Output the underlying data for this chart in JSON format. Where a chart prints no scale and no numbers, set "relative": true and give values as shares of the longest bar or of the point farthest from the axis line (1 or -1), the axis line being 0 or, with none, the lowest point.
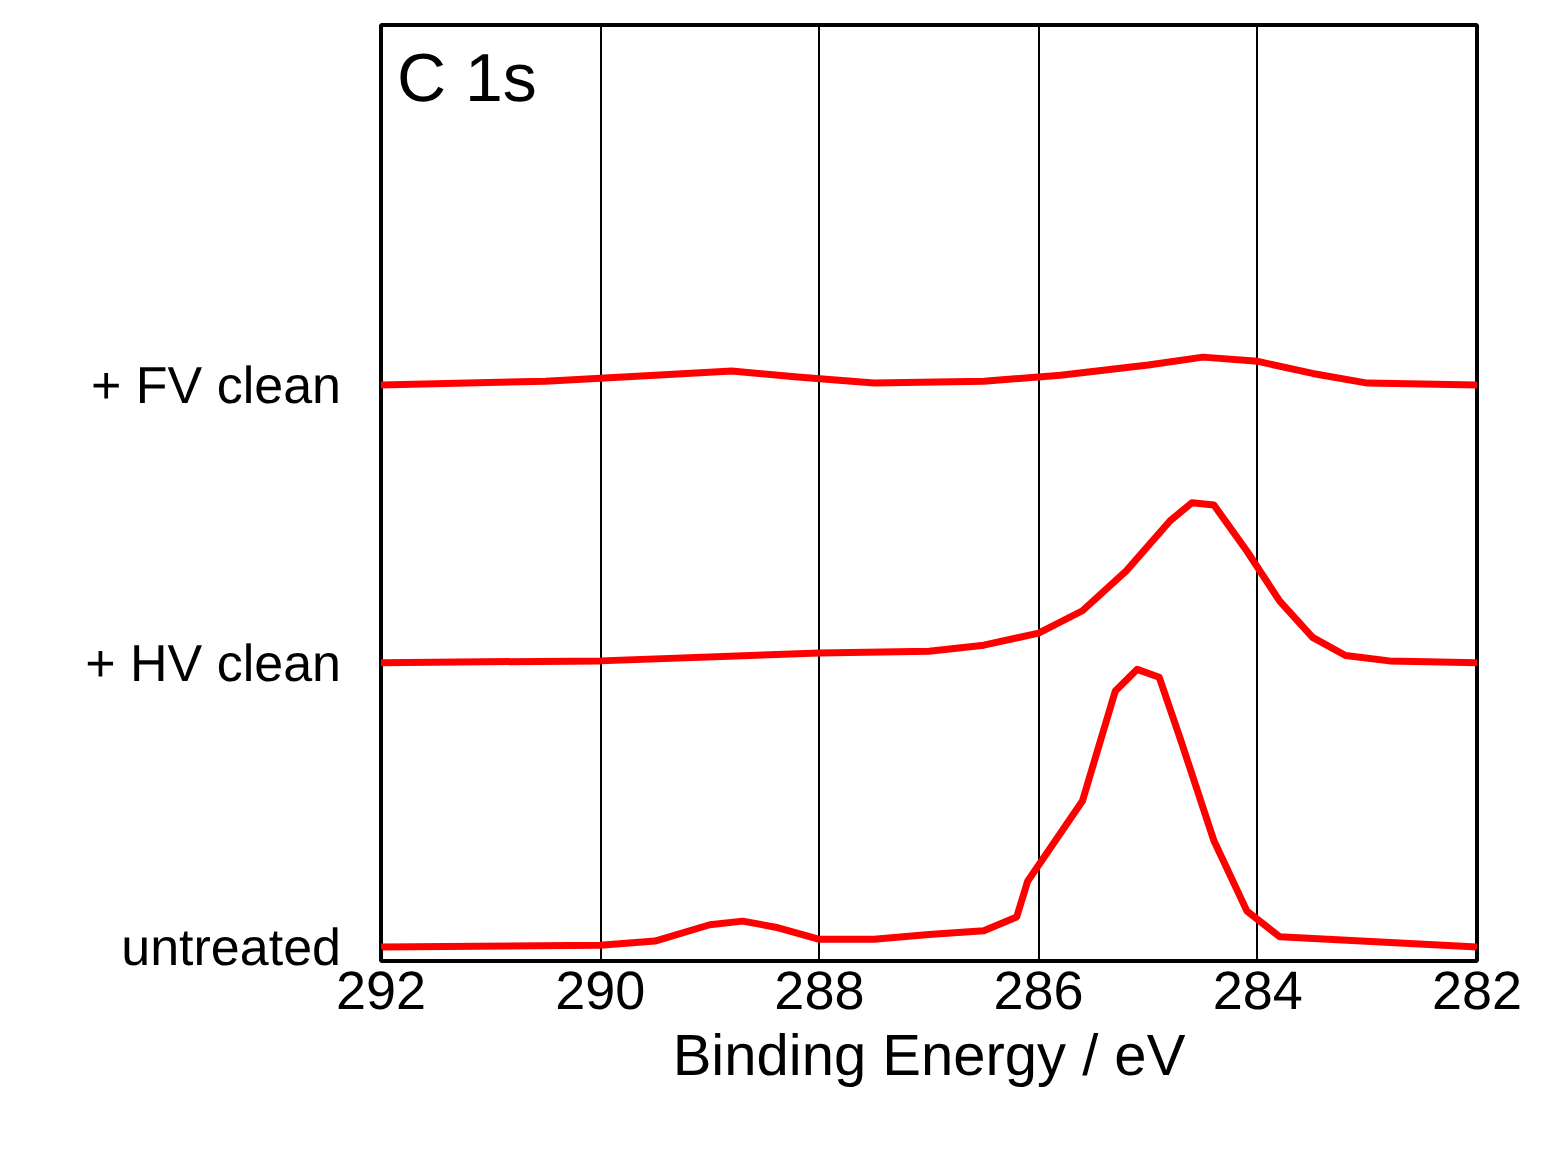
{
  "chart_data": {
    "type": "line",
    "relative": true,
    "xlabel": "Binding Energy / eV",
    "annotations": [
      "C 1s"
    ],
    "xlim": [
      292,
      282
    ],
    "xticks": [
      292,
      290,
      288,
      286,
      284,
      282
    ],
    "grid": "x",
    "marker": "none",
    "line_style": "solid",
    "series": [
      {
        "name": "+ FV clean",
        "color": "#ff0000",
        "x": [
          292,
          290.5,
          289.5,
          288.8,
          288.2,
          287.5,
          286.5,
          285.8,
          285,
          284.5,
          284,
          283.5,
          283,
          282
        ],
        "values": [
          0.954,
          0.96,
          0.97,
          0.977,
          0.967,
          0.957,
          0.96,
          0.97,
          0.987,
          1.0,
          0.993,
          0.973,
          0.957,
          0.954
        ]
      },
      {
        "name": "+ HV clean",
        "color": "#ff0000",
        "x": [
          292,
          290,
          288,
          287,
          286.5,
          286,
          285.6,
          285.2,
          284.8,
          284.6,
          284.4,
          284.1,
          283.8,
          283.5,
          283.2,
          282.8,
          282
        ],
        "values": [
          0.494,
          0.497,
          0.51,
          0.513,
          0.523,
          0.543,
          0.58,
          0.646,
          0.729,
          0.759,
          0.755,
          0.679,
          0.596,
          0.536,
          0.506,
          0.497,
          0.494
        ]
      },
      {
        "name": "untreated",
        "color": "#ff0000",
        "x": [
          292,
          290,
          289.5,
          289,
          288.7,
          288.4,
          288,
          287.5,
          287,
          286.5,
          286.2,
          286.1,
          285.6,
          285.3,
          285.1,
          284.9,
          284.7,
          284.4,
          284.1,
          283.8,
          282
        ],
        "values": [
          0.023,
          0.026,
          0.033,
          0.06,
          0.066,
          0.056,
          0.036,
          0.036,
          0.044,
          0.05,
          0.073,
          0.132,
          0.265,
          0.447,
          0.483,
          0.47,
          0.364,
          0.199,
          0.083,
          0.04,
          0.023
        ]
      }
    ]
  }
}
